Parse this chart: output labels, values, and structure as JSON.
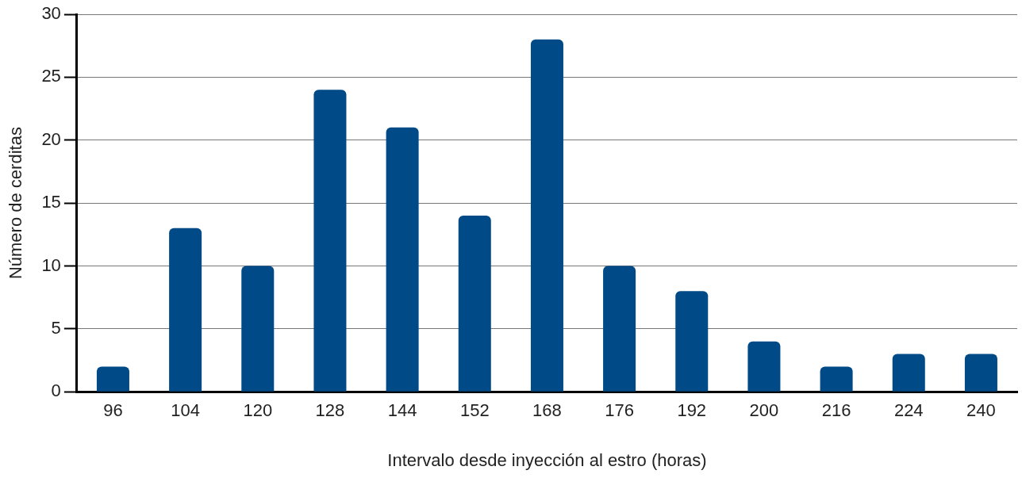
{
  "chart_data": {
    "type": "bar",
    "xlabel": "Intervalo desde inyección al estro (horas)",
    "ylabel": "Número de cerditas",
    "categories": [
      "96",
      "104",
      "120",
      "128",
      "144",
      "152",
      "168",
      "176",
      "192",
      "200",
      "216",
      "224",
      "240"
    ],
    "values": [
      2,
      13,
      10,
      24,
      21,
      14,
      28,
      10,
      8,
      4,
      2,
      3,
      3
    ],
    "color": "#004a87",
    "ylim": [
      0,
      30
    ],
    "yticks": [
      0,
      5,
      10,
      15,
      20,
      25,
      30
    ],
    "grid": "y",
    "legend": false
  }
}
